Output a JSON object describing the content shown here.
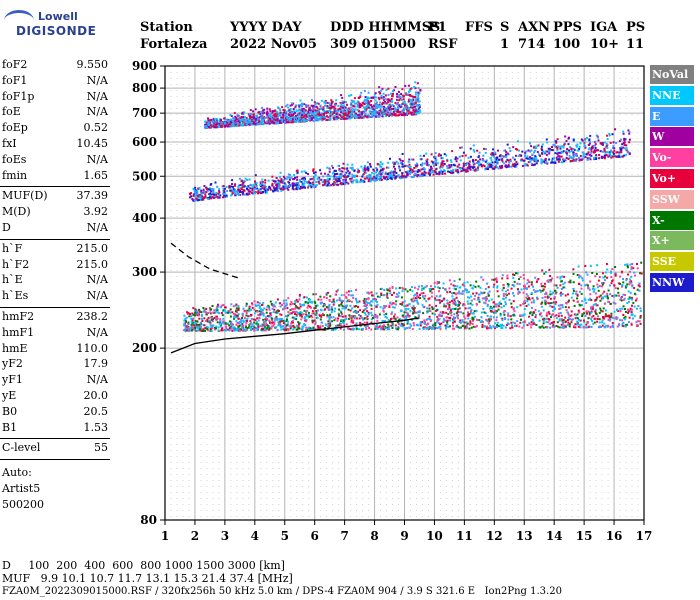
{
  "logo": {
    "line1": "Lowell",
    "line2": "DIGISONDE"
  },
  "header": {
    "labels": [
      "Station",
      "YYYY DAY",
      "DDD HHMMSS",
      "P1",
      "FFS",
      "S",
      "AXN",
      "PPS",
      "IGA",
      "PS"
    ],
    "values": [
      "Fortaleza",
      "2022 Nov05",
      "309 015000",
      "RSF",
      "",
      "1",
      "714",
      "100",
      "10+",
      "11"
    ]
  },
  "params": {
    "group1": [
      {
        "label": "foF2",
        "value": "9.550"
      },
      {
        "label": "foF1",
        "value": "N/A"
      },
      {
        "label": "foF1p",
        "value": "N/A"
      },
      {
        "label": "foE",
        "value": "N/A"
      },
      {
        "label": "foEp",
        "value": "0.52"
      },
      {
        "label": "fxI",
        "value": "10.45"
      },
      {
        "label": "foEs",
        "value": "N/A"
      },
      {
        "label": "fmin",
        "value": "1.65"
      }
    ],
    "group2": [
      {
        "label": "MUF(D)",
        "value": "37.39"
      },
      {
        "label": "M(D)",
        "value": "3.92"
      },
      {
        "label": "D",
        "value": "N/A"
      }
    ],
    "group3": [
      {
        "label": "h`F",
        "value": "215.0"
      },
      {
        "label": "h`F2",
        "value": "215.0"
      },
      {
        "label": "h`E",
        "value": "N/A"
      },
      {
        "label": "h`Es",
        "value": "N/A"
      }
    ],
    "group4": [
      {
        "label": "hmF2",
        "value": "238.2"
      },
      {
        "label": "hmF1",
        "value": "N/A"
      },
      {
        "label": "hmE",
        "value": "110.0"
      },
      {
        "label": "yF2",
        "value": "17.9"
      },
      {
        "label": "yF1",
        "value": "N/A"
      },
      {
        "label": "yE",
        "value": "20.0"
      },
      {
        "label": "B0",
        "value": "20.5"
      },
      {
        "label": "B1",
        "value": "1.53"
      }
    ],
    "group5": [
      {
        "label": "C-level",
        "value": "55"
      }
    ],
    "auto": [
      "Auto:",
      "Artist5",
      "500200"
    ]
  },
  "legend": [
    {
      "label": "NoVal",
      "color": "#808080"
    },
    {
      "label": "NNE",
      "color": "#00c8ff"
    },
    {
      "label": "E",
      "color": "#3c9cff"
    },
    {
      "label": "W",
      "color": "#a000a0"
    },
    {
      "label": "Vo-",
      "color": "#ff40a0"
    },
    {
      "label": "Vo+",
      "color": "#e8003c"
    },
    {
      "label": "SSW",
      "color": "#f4a8a8"
    },
    {
      "label": "X-",
      "color": "#007800"
    },
    {
      "label": "X+",
      "color": "#7cb85c"
    },
    {
      "label": "SSE",
      "color": "#c8c800"
    },
    {
      "label": "NNW",
      "color": "#1c1ccc"
    }
  ],
  "footer": {
    "d_label": "D",
    "d_values": "100  200  400  600  800 1000 1500 3000 [km]",
    "muf_label": "MUF",
    "muf_values": "9.9 10.1 10.7 11.7 13.1 15.3 21.4 37.4 [MHz]",
    "file_line": "FZA0M_2022309015000.RSF / 320fx256h 50 kHz 5.0 km / DPS-4 FZA0M 904 / 3.9 S 321.6 E   Ion2Png 1.3.20"
  },
  "chart_data": {
    "type": "scatter",
    "title": "",
    "xlabel": "",
    "ylabel": "",
    "xlim": [
      1,
      17
    ],
    "ylim": [
      80,
      900
    ],
    "yscale": "log",
    "xticks": [
      1,
      2,
      3,
      4,
      5,
      6,
      7,
      8,
      9,
      10,
      11,
      12,
      13,
      14,
      15,
      16,
      17
    ],
    "yticks": [
      80,
      200,
      300,
      400,
      500,
      600,
      700,
      800,
      900
    ],
    "grid": true,
    "legend_position": "right",
    "echo_bands": [
      {
        "name": "F-layer 1st hop",
        "x": [
          1.6,
          16.9
        ],
        "y_start": [
          220,
          225
        ],
        "y_end": [
          240,
          300
        ],
        "width": 18,
        "colors": [
          "Vo+",
          "Vo-",
          "X-",
          "E",
          "NNE"
        ]
      },
      {
        "name": "F-layer 2nd hop",
        "x": [
          1.8,
          16.5
        ],
        "y_start": [
          440,
          560
        ],
        "y_end": [
          460,
          600
        ],
        "width": 40,
        "colors": [
          "E",
          "NNE",
          "W",
          "Vo+",
          "NNW"
        ]
      },
      {
        "name": "F-layer 3rd hop",
        "x": [
          2.3,
          9.5
        ],
        "y_start": [
          650,
          700
        ],
        "y_end": [
          660,
          760
        ],
        "width": 55,
        "colors": [
          "W",
          "Vo+",
          "NNE",
          "E"
        ]
      }
    ],
    "traces": [
      {
        "name": "o-trace",
        "x": [
          1.2,
          2,
          3,
          4,
          5,
          6,
          7,
          8,
          9,
          9.5
        ],
        "y": [
          195,
          205,
          210,
          213,
          216,
          220,
          224,
          228,
          232,
          235
        ]
      },
      {
        "name": "x-trace",
        "x": [
          1.2,
          1.8,
          2.5,
          3.5
        ],
        "y": [
          350,
          325,
          305,
          290
        ]
      }
    ]
  }
}
